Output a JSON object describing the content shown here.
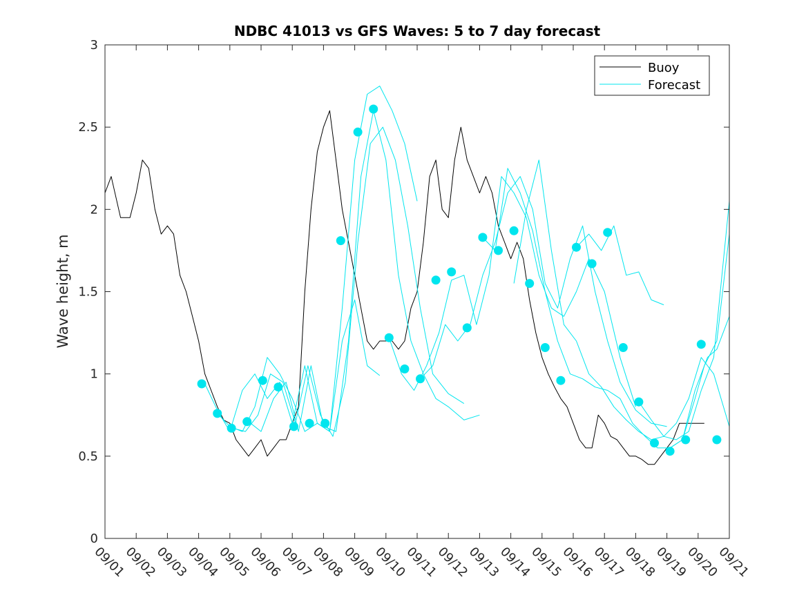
{
  "chart_data": {
    "type": "line",
    "title": "NDBC 41013 vs GFS Waves: 5 to 7 day forecast",
    "xlabel": "",
    "ylabel": "Wave height, m",
    "xlim": [
      0,
      20
    ],
    "ylim": [
      0,
      3
    ],
    "yticks": [
      0,
      0.5,
      1,
      1.5,
      2,
      2.5,
      3
    ],
    "ytick_labels": [
      "0",
      "0.5",
      "1",
      "1.5",
      "2",
      "2.5",
      "3"
    ],
    "xtick_labels": [
      "09/01",
      "09/02",
      "09/03",
      "09/04",
      "09/05",
      "09/06",
      "09/07",
      "09/08",
      "09/09",
      "09/10",
      "09/11",
      "09/12",
      "09/13",
      "09/14",
      "09/15",
      "09/16",
      "09/17",
      "09/18",
      "09/19",
      "09/20",
      "09/21"
    ],
    "legend": {
      "location": "top-right",
      "entries": [
        {
          "name": "Buoy",
          "color": "#000000"
        },
        {
          "name": "Forecast",
          "color": "#00e5ee"
        }
      ]
    },
    "series": [
      {
        "name": "Buoy",
        "color": "#000000",
        "x": [
          0,
          0.2,
          0.5,
          0.8,
          1.0,
          1.2,
          1.4,
          1.6,
          1.8,
          2.0,
          2.2,
          2.4,
          2.6,
          2.8,
          3.0,
          3.2,
          3.4,
          3.6,
          3.8,
          4.0,
          4.2,
          4.4,
          4.6,
          4.8,
          5.0,
          5.2,
          5.4,
          5.6,
          5.8,
          6.0,
          6.2,
          6.4,
          6.6,
          6.8,
          7.0,
          7.2,
          7.4,
          7.6,
          7.8,
          8.0,
          8.2,
          8.4,
          8.6,
          8.8,
          9.0,
          9.2,
          9.4,
          9.6,
          9.8,
          10.0,
          10.2,
          10.4,
          10.6,
          10.8,
          11.0,
          11.2,
          11.4,
          11.6,
          11.8,
          12.0,
          12.2,
          12.4,
          12.6,
          12.8,
          13.0,
          13.2,
          13.4,
          13.6,
          13.8,
          14.0,
          14.2,
          14.4,
          14.6,
          14.8,
          15.0,
          15.2,
          15.4,
          15.6,
          15.8,
          16.0,
          16.2,
          16.4,
          16.6,
          16.8,
          17.0,
          17.2,
          17.4,
          17.6,
          17.8,
          18.0,
          18.2,
          18.4,
          18.6,
          18.8,
          19.0,
          19.2
        ],
        "values": [
          2.1,
          2.2,
          1.95,
          1.95,
          2.1,
          2.3,
          2.25,
          2.0,
          1.85,
          1.9,
          1.85,
          1.6,
          1.5,
          1.35,
          1.2,
          1.0,
          0.9,
          0.8,
          0.72,
          0.7,
          0.6,
          0.55,
          0.5,
          0.55,
          0.6,
          0.5,
          0.55,
          0.6,
          0.6,
          0.7,
          0.8,
          1.5,
          2.0,
          2.35,
          2.5,
          2.6,
          2.3,
          2.0,
          1.8,
          1.6,
          1.4,
          1.2,
          1.15,
          1.2,
          1.2,
          1.2,
          1.15,
          1.2,
          1.4,
          1.5,
          1.8,
          2.2,
          2.3,
          2.0,
          1.95,
          2.3,
          2.5,
          2.3,
          2.2,
          2.1,
          2.2,
          2.1,
          1.9,
          1.8,
          1.7,
          1.8,
          1.7,
          1.45,
          1.25,
          1.1,
          1.0,
          0.92,
          0.85,
          0.8,
          0.7,
          0.6,
          0.55,
          0.55,
          0.75,
          0.7,
          0.62,
          0.6,
          0.55,
          0.5,
          0.5,
          0.48,
          0.45,
          0.45,
          0.5,
          0.55,
          0.6,
          0.7,
          0.7,
          0.7,
          0.7,
          0.7
        ]
      },
      {
        "name": "Forecast",
        "color": "#00e5ee",
        "x": [
          3.2,
          3.6,
          4.0,
          4.4,
          4.8,
          5.2,
          5.6,
          6.0,
          6.4,
          6.8,
          7.2,
          7.6,
          8.0,
          8.4,
          8.8
        ],
        "values": [
          0.94,
          0.78,
          0.65,
          0.9,
          1.0,
          0.85,
          0.95,
          0.7,
          1.05,
          0.7,
          0.65,
          1.2,
          1.45,
          1.05,
          0.99
        ]
      },
      {
        "name": "Forecast",
        "color": "#00e5ee",
        "x": [
          3.6,
          4.0,
          4.4,
          4.8,
          5.2,
          5.6,
          6.0,
          6.4,
          6.8,
          7.2,
          7.6,
          8.0,
          8.4,
          8.8,
          9.2,
          9.6,
          10.0
        ],
        "values": [
          0.76,
          0.68,
          0.65,
          0.8,
          1.1,
          1.0,
          0.85,
          0.65,
          0.7,
          0.65,
          1.4,
          2.3,
          2.7,
          2.75,
          2.6,
          2.4,
          2.05
        ]
      },
      {
        "name": "Forecast",
        "color": "#00e5ee",
        "x": [
          4.1,
          4.5,
          4.9,
          5.3,
          5.7,
          6.1,
          6.5,
          6.9,
          7.3,
          7.7,
          8.1,
          8.5,
          8.9,
          9.3,
          9.7,
          10.1,
          10.5,
          11.0,
          11.5
        ],
        "values": [
          0.67,
          0.65,
          0.75,
          1.0,
          0.95,
          0.7,
          1.05,
          0.75,
          0.62,
          0.95,
          1.8,
          2.4,
          2.5,
          2.3,
          1.9,
          1.4,
          1.0,
          0.88,
          0.82
        ]
      },
      {
        "name": "Forecast",
        "color": "#00e5ee",
        "x": [
          4.6,
          5.0,
          5.4,
          5.8,
          6.2,
          6.6,
          7.0,
          7.4,
          7.8,
          8.2,
          8.6,
          9.0,
          9.4,
          9.8,
          10.2,
          10.6,
          11.0,
          11.5,
          12.0
        ],
        "values": [
          0.71,
          0.65,
          0.85,
          0.95,
          0.65,
          1.05,
          0.68,
          0.65,
          1.2,
          2.2,
          2.6,
          2.3,
          1.6,
          1.2,
          1.0,
          0.85,
          0.8,
          0.72,
          0.75
        ]
      },
      {
        "name": "Forecast",
        "color": "#00e5ee",
        "x": [
          9.1,
          9.5,
          9.9,
          10.3,
          10.7,
          11.1,
          11.5,
          11.9,
          12.3,
          12.7,
          13.1,
          13.5,
          13.9,
          14.3,
          14.7,
          15.1,
          15.5,
          16.0,
          16.5,
          17.0
        ],
        "values": [
          1.22,
          1.0,
          0.9,
          1.05,
          1.25,
          1.57,
          1.6,
          1.3,
          1.6,
          2.2,
          2.1,
          1.95,
          1.6,
          1.4,
          1.35,
          1.5,
          1.7,
          1.5,
          1.1,
          0.8
        ]
      },
      {
        "name": "Forecast",
        "color": "#00e5ee",
        "x": [
          10.1,
          10.5,
          10.9,
          11.3,
          11.7,
          12.1,
          12.5,
          12.9,
          13.3,
          13.7,
          14.1,
          14.5,
          14.9,
          15.3,
          15.7,
          16.1,
          16.5,
          17.0,
          17.5,
          18.0
        ],
        "values": [
          0.97,
          1.05,
          1.3,
          1.2,
          1.3,
          1.6,
          1.8,
          2.1,
          2.2,
          2.0,
          1.55,
          1.4,
          1.7,
          1.9,
          1.5,
          1.2,
          0.95,
          0.78,
          0.7,
          0.68
        ]
      },
      {
        "name": "Forecast",
        "color": "#00e5ee",
        "x": [
          12.1,
          12.5,
          12.9,
          13.3,
          13.7,
          14.1,
          14.5,
          14.9,
          15.3,
          15.7,
          16.1,
          16.5,
          16.9,
          17.3,
          17.7,
          18.1,
          18.5,
          18.9,
          19.3,
          19.6,
          20.0
        ],
        "values": [
          1.83,
          1.75,
          2.25,
          2.1,
          1.87,
          1.5,
          1.2,
          1.0,
          0.97,
          0.92,
          0.9,
          0.85,
          0.7,
          0.62,
          0.55,
          0.55,
          0.6,
          0.9,
          1.1,
          1.15,
          1.35
        ]
      },
      {
        "name": "Forecast",
        "color": "#00e5ee",
        "x": [
          13.1,
          13.5,
          13.9,
          14.3,
          14.7,
          15.1,
          15.5,
          15.9,
          16.3,
          16.7,
          17.1,
          17.5,
          17.9,
          18.3,
          18.7,
          19.1,
          19.5,
          20.0
        ],
        "values": [
          1.55,
          2.0,
          2.3,
          1.75,
          1.3,
          1.2,
          1.0,
          0.92,
          0.8,
          0.72,
          0.65,
          0.6,
          0.62,
          0.7,
          0.85,
          1.1,
          1.0,
          0.68
        ]
      },
      {
        "name": "Forecast",
        "color": "#00e5ee",
        "x": [
          15.1,
          15.5,
          15.9,
          16.3,
          16.7,
          17.1,
          17.5,
          17.9
        ],
        "values": [
          1.77,
          1.85,
          1.75,
          1.9,
          1.6,
          1.62,
          1.45,
          1.42
        ]
      },
      {
        "name": "Forecast",
        "color": "#00e5ee",
        "x": [
          17.1,
          17.5,
          17.9,
          18.3,
          18.7,
          19.1,
          19.5,
          20.0
        ],
        "values": [
          0.83,
          0.72,
          0.62,
          0.6,
          0.65,
          0.9,
          1.1,
          2.05
        ]
      },
      {
        "name": "Forecast",
        "color": "#00e5ee",
        "x": [
          18.1,
          18.5,
          18.9,
          19.2,
          19.6,
          20.0
        ],
        "values": [
          0.55,
          0.6,
          0.85,
          1.05,
          1.2,
          1.85
        ]
      }
    ],
    "markers": {
      "name": "Forecast points",
      "color": "#00e5ee",
      "x": [
        3.1,
        3.6,
        4.05,
        4.55,
        5.05,
        5.55,
        6.05,
        6.55,
        7.05,
        7.55,
        8.1,
        8.6,
        9.1,
        9.6,
        10.1,
        10.6,
        11.1,
        11.6,
        12.1,
        12.6,
        13.1,
        13.6,
        14.1,
        14.6,
        15.1,
        15.6,
        16.1,
        16.6,
        17.1,
        17.6,
        18.1,
        18.6,
        19.1,
        19.6
      ],
      "y": [
        0.94,
        0.76,
        0.67,
        0.71,
        0.96,
        0.92,
        0.68,
        0.7,
        0.7,
        1.81,
        2.47,
        2.61,
        1.22,
        1.03,
        0.97,
        1.57,
        1.62,
        1.28,
        1.83,
        1.75,
        1.87,
        1.55,
        1.16,
        0.96,
        1.77,
        1.67,
        1.86,
        1.16,
        0.83,
        0.58,
        0.53,
        0.6,
        1.18,
        0.6
      ]
    }
  }
}
